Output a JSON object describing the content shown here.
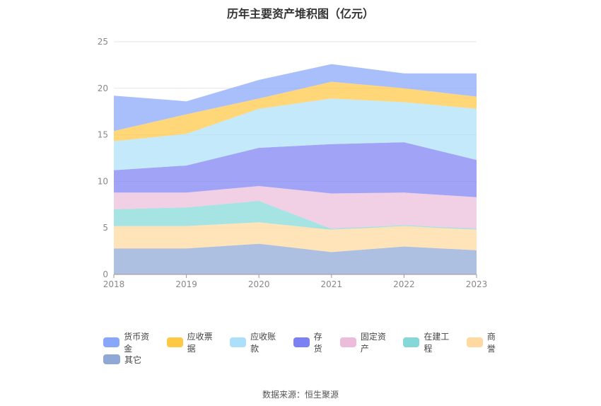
{
  "title": "历年主要资产堆积图（亿元）",
  "source": "数据来源：恒生聚源",
  "chart_data": {
    "type": "area",
    "stacked": true,
    "categories": [
      "2018",
      "2019",
      "2020",
      "2021",
      "2022",
      "2023"
    ],
    "ylim": [
      0,
      25
    ],
    "yticks": [
      "0",
      "5",
      "10",
      "15",
      "20",
      "25"
    ],
    "grid": true,
    "legend_position": "bottom",
    "series": [
      {
        "name": "其它",
        "color": "#8fa8d6",
        "values": [
          2.8,
          2.8,
          3.3,
          2.4,
          3.0,
          2.6
        ]
      },
      {
        "name": "商誉",
        "color": "#ffd9a0",
        "values": [
          2.4,
          2.4,
          2.3,
          2.4,
          2.2,
          2.2
        ]
      },
      {
        "name": "在建工程",
        "color": "#84d8d8",
        "values": [
          1.8,
          2.0,
          2.3,
          0.1,
          0.1,
          0.1
        ]
      },
      {
        "name": "固定资产",
        "color": "#ebbddb",
        "values": [
          1.8,
          1.6,
          1.6,
          3.8,
          3.5,
          3.4
        ]
      },
      {
        "name": "存货",
        "color": "#7b80f2",
        "values": [
          2.4,
          2.9,
          4.1,
          5.3,
          5.4,
          4.0
        ]
      },
      {
        "name": "应收账款",
        "color": "#ace0fa",
        "values": [
          3.1,
          3.4,
          4.2,
          4.9,
          4.3,
          5.5
        ]
      },
      {
        "name": "应收票据",
        "color": "#ffc845",
        "values": [
          1.1,
          2.1,
          1.1,
          1.8,
          1.5,
          1.3
        ]
      },
      {
        "name": "货币资金",
        "color": "#88a6fa",
        "values": [
          3.8,
          1.4,
          2.0,
          1.9,
          1.6,
          2.5
        ]
      }
    ]
  },
  "legend": {
    "row1": [
      "货币资金",
      "应收票据",
      "应收账款",
      "存货",
      "固定资产",
      "在建工程",
      "商誉"
    ],
    "row2": [
      "其它"
    ]
  }
}
